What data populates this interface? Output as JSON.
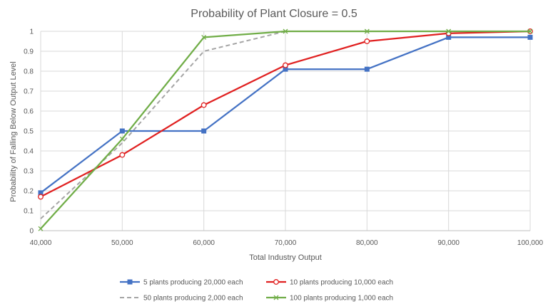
{
  "chart_data": {
    "type": "line",
    "title": "Probability of Plant Closure = 0.5",
    "xlabel": "Total Industry Output",
    "ylabel": "Probability of Falling Below Output Level",
    "x": [
      40000,
      50000,
      60000,
      70000,
      80000,
      90000,
      100000
    ],
    "x_tick_labels": [
      "40,000",
      "50,000",
      "60,000",
      "70,000",
      "80,000",
      "90,000",
      "100,000"
    ],
    "y_tick_labels": [
      "0",
      "0.1",
      "0.2",
      "0.3",
      "0.4",
      "0.5",
      "0.6",
      "0.7",
      "0.8",
      "0.9",
      "1"
    ],
    "ylim": [
      0,
      1
    ],
    "grid": "vertical and horizontal",
    "legend_position": "bottom",
    "series": [
      {
        "name": "5 plants producing 20,000 each",
        "color": "#4472C4",
        "line": "solid",
        "marker": "square",
        "x": [
          40000,
          50000,
          60000,
          70000,
          80000,
          90000,
          100000
        ],
        "values": [
          0.19,
          0.5,
          0.5,
          0.81,
          0.81,
          0.97,
          0.97
        ]
      },
      {
        "name": "10 plants producing 10,000 each",
        "color": "#E02020",
        "line": "solid",
        "marker": "circle",
        "x": [
          40000,
          50000,
          60000,
          70000,
          80000,
          90000,
          100000
        ],
        "values": [
          0.17,
          0.38,
          0.63,
          0.83,
          0.95,
          0.99,
          1.0
        ]
      },
      {
        "name": "50 plants producing 2,000 each",
        "color": "#A5A5A5",
        "line": "dashed",
        "marker": "none",
        "x": [
          40000,
          50000,
          60000,
          70000,
          80000,
          90000,
          100000
        ],
        "values": [
          0.06,
          0.44,
          0.9,
          1.0,
          1.0,
          1.0,
          1.0
        ]
      },
      {
        "name": "100 plants producing 1,000 each",
        "color": "#70AD47",
        "line": "solid",
        "marker": "x",
        "x": [
          40000,
          50000,
          60000,
          70000,
          80000,
          90000,
          100000
        ],
        "values": [
          0.01,
          0.46,
          0.97,
          1.0,
          1.0,
          1.0,
          1.0
        ]
      }
    ]
  }
}
